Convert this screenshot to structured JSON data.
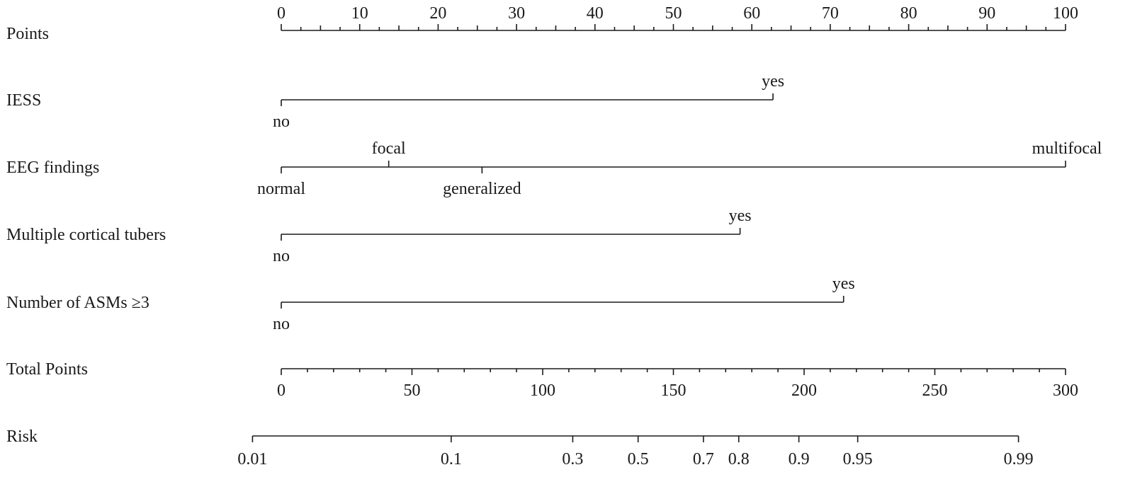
{
  "chart_data": {
    "type": "nomogram",
    "points_scale": {
      "label": "Points",
      "min": 0,
      "max": 100,
      "major_ticks": [
        0,
        10,
        20,
        30,
        40,
        50,
        60,
        70,
        80,
        90,
        100
      ],
      "minor_step": 2.5
    },
    "predictors": [
      {
        "name": "IESS",
        "levels": [
          {
            "label": "no",
            "points": 0,
            "text_side": "below"
          },
          {
            "label": "yes",
            "points": 62.7,
            "text_side": "above"
          }
        ]
      },
      {
        "name": "EEG findings",
        "levels": [
          {
            "label": "normal",
            "points": 0,
            "text_side": "below"
          },
          {
            "label": "focal",
            "points": 13.7,
            "text_side": "above"
          },
          {
            "label": "generalized",
            "points": 25.6,
            "text_side": "below"
          },
          {
            "label": "multifocal",
            "points": 100,
            "text_side": "above"
          }
        ]
      },
      {
        "name": "Multiple cortical tubers",
        "levels": [
          {
            "label": "no",
            "points": 0,
            "text_side": "below"
          },
          {
            "label": "yes",
            "points": 58.5,
            "text_side": "above"
          }
        ]
      },
      {
        "name": "Number of ASMs ≥3",
        "levels": [
          {
            "label": "no",
            "points": 0,
            "text_side": "below"
          },
          {
            "label": "yes",
            "points": 71.7,
            "text_side": "above"
          }
        ]
      }
    ],
    "total_points_scale": {
      "label": "Total Points",
      "min": 0,
      "max": 300,
      "major_ticks": [
        0,
        50,
        100,
        150,
        200,
        250,
        300
      ],
      "minor_step": 10
    },
    "risk_scale": {
      "label": "Risk",
      "ticks": [
        {
          "label": "0.01",
          "total_points": -11
        },
        {
          "label": "0.1",
          "total_points": 65
        },
        {
          "label": "0.3",
          "total_points": 111.5
        },
        {
          "label": "0.5",
          "total_points": 136.5
        },
        {
          "label": "0.7",
          "total_points": 161.5
        },
        {
          "label": "0.8",
          "total_points": 175
        },
        {
          "label": "0.9",
          "total_points": 198
        },
        {
          "label": "0.95",
          "total_points": 220.5
        },
        {
          "label": "0.99",
          "total_points": 282
        }
      ]
    }
  }
}
